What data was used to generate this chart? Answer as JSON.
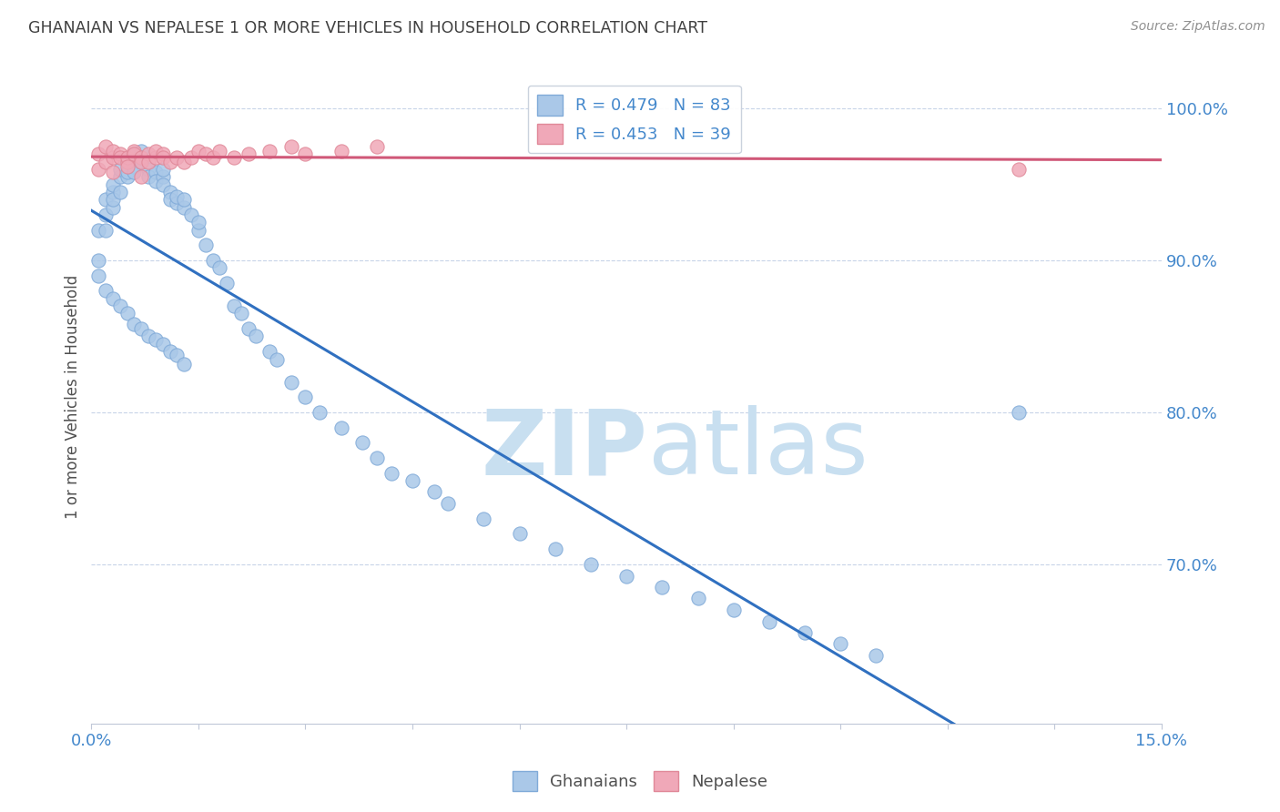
{
  "title": "GHANAIAN VS NEPALESE 1 OR MORE VEHICLES IN HOUSEHOLD CORRELATION CHART",
  "source": "Source: ZipAtlas.com",
  "ylabel": "1 or more Vehicles in Household",
  "ytick_labels": [
    "100.0%",
    "90.0%",
    "80.0%",
    "70.0%"
  ],
  "ytick_values": [
    1.0,
    0.9,
    0.8,
    0.7
  ],
  "xlim": [
    0.0,
    0.15
  ],
  "ylim": [
    0.595,
    1.025
  ],
  "legend_entry_gh": "R = 0.479   N = 83",
  "legend_entry_np": "R = 0.453   N = 39",
  "watermark_zip": "ZIP",
  "watermark_atlas": "atlas",
  "watermark_color": "#c8dff0",
  "ghanaian_color": "#aac8e8",
  "nepalese_color": "#f0a8b8",
  "ghanaian_edge_color": "#80aad8",
  "nepalese_edge_color": "#e08898",
  "trend_ghanaian_color": "#3070c0",
  "trend_nepalese_color": "#d05878",
  "background_color": "#ffffff",
  "grid_color": "#c8d4e8",
  "title_color": "#404040",
  "ytick_color": "#4488cc",
  "xtick_color": "#4488cc",
  "marker_size": 120,
  "gh_x": [
    0.001,
    0.001,
    0.001,
    0.002,
    0.002,
    0.002,
    0.003,
    0.003,
    0.003,
    0.003,
    0.004,
    0.004,
    0.004,
    0.005,
    0.005,
    0.005,
    0.006,
    0.006,
    0.006,
    0.007,
    0.007,
    0.007,
    0.008,
    0.008,
    0.009,
    0.009,
    0.01,
    0.01,
    0.01,
    0.011,
    0.011,
    0.012,
    0.012,
    0.013,
    0.013,
    0.014,
    0.015,
    0.015,
    0.016,
    0.017,
    0.018,
    0.019,
    0.02,
    0.021,
    0.022,
    0.023,
    0.025,
    0.026,
    0.028,
    0.03,
    0.032,
    0.035,
    0.038,
    0.04,
    0.042,
    0.045,
    0.048,
    0.05,
    0.055,
    0.06,
    0.065,
    0.07,
    0.075,
    0.08,
    0.085,
    0.09,
    0.095,
    0.1,
    0.105,
    0.11,
    0.002,
    0.003,
    0.004,
    0.005,
    0.006,
    0.007,
    0.008,
    0.009,
    0.01,
    0.011,
    0.012,
    0.013,
    0.13
  ],
  "gh_y": [
    0.92,
    0.9,
    0.89,
    0.94,
    0.93,
    0.92,
    0.945,
    0.935,
    0.95,
    0.94,
    0.955,
    0.945,
    0.96,
    0.955,
    0.965,
    0.958,
    0.962,
    0.958,
    0.97,
    0.965,
    0.972,
    0.968,
    0.96,
    0.955,
    0.958,
    0.952,
    0.955,
    0.96,
    0.95,
    0.945,
    0.94,
    0.938,
    0.942,
    0.935,
    0.94,
    0.93,
    0.92,
    0.925,
    0.91,
    0.9,
    0.895,
    0.885,
    0.87,
    0.865,
    0.855,
    0.85,
    0.84,
    0.835,
    0.82,
    0.81,
    0.8,
    0.79,
    0.78,
    0.77,
    0.76,
    0.755,
    0.748,
    0.74,
    0.73,
    0.72,
    0.71,
    0.7,
    0.692,
    0.685,
    0.678,
    0.67,
    0.662,
    0.655,
    0.648,
    0.64,
    0.88,
    0.875,
    0.87,
    0.865,
    0.858,
    0.855,
    0.85,
    0.848,
    0.845,
    0.84,
    0.838,
    0.832,
    0.8
  ],
  "np_x": [
    0.001,
    0.001,
    0.002,
    0.002,
    0.003,
    0.003,
    0.004,
    0.004,
    0.005,
    0.005,
    0.006,
    0.006,
    0.007,
    0.007,
    0.008,
    0.008,
    0.009,
    0.009,
    0.01,
    0.01,
    0.011,
    0.012,
    0.013,
    0.014,
    0.015,
    0.016,
    0.017,
    0.018,
    0.02,
    0.022,
    0.025,
    0.028,
    0.03,
    0.035,
    0.04,
    0.003,
    0.005,
    0.007,
    0.13
  ],
  "np_y": [
    0.97,
    0.96,
    0.975,
    0.965,
    0.968,
    0.972,
    0.97,
    0.968,
    0.965,
    0.968,
    0.972,
    0.97,
    0.968,
    0.965,
    0.97,
    0.965,
    0.968,
    0.972,
    0.97,
    0.968,
    0.965,
    0.968,
    0.965,
    0.968,
    0.972,
    0.97,
    0.968,
    0.972,
    0.968,
    0.97,
    0.972,
    0.975,
    0.97,
    0.972,
    0.975,
    0.958,
    0.962,
    0.955,
    0.96
  ]
}
